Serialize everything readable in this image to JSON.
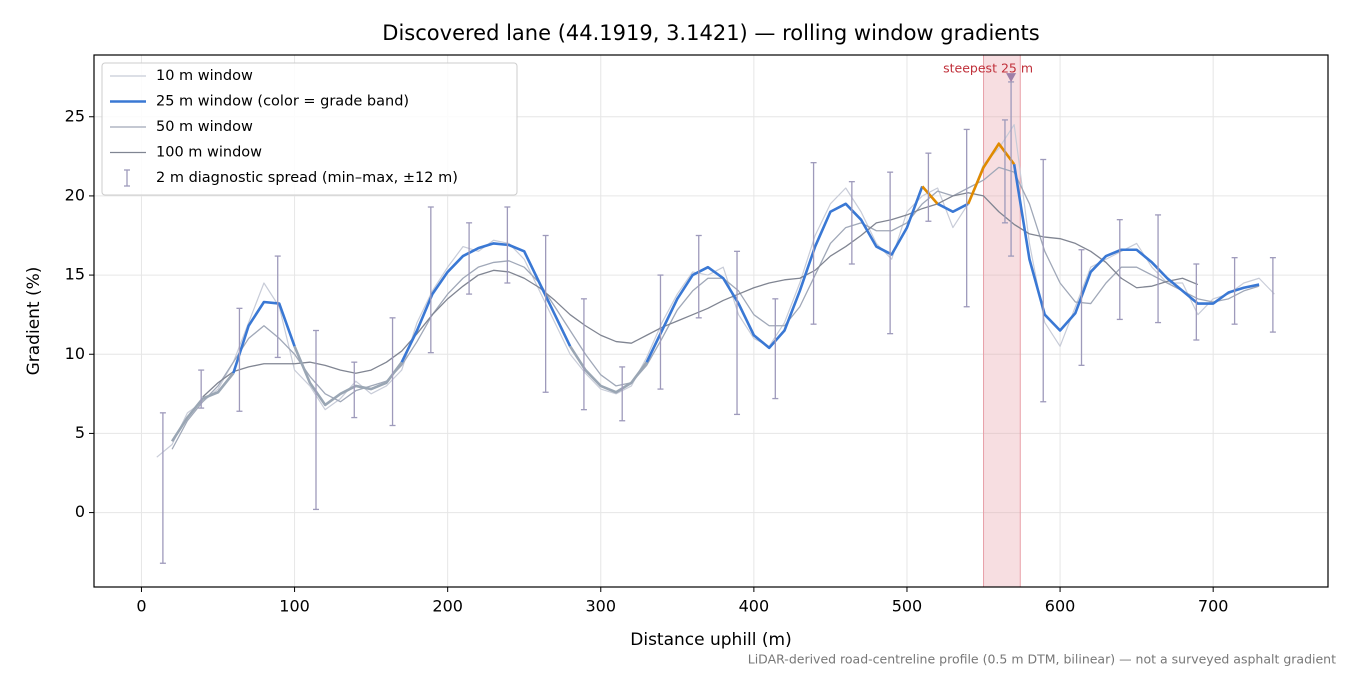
{
  "chart_data": {
    "type": "line",
    "title": "Discovered lane (44.1919, 3.1421) — rolling window gradients",
    "x_label": "Distance uphill (m)",
    "y_label": "Gradient (%)",
    "footnote": "LiDAR-derived road-centreline profile (0.5 m DTM, bilinear) — not a surveyed asphalt gradient",
    "xlim": [
      -31,
      775
    ],
    "ylim": [
      -4.7,
      28.9
    ],
    "xticks": [
      0,
      100,
      200,
      300,
      400,
      500,
      600,
      700
    ],
    "yticks": [
      0,
      5,
      10,
      15,
      20,
      25
    ],
    "grid": true,
    "legend": "upper left",
    "x": [
      10,
      20,
      30,
      40,
      50,
      60,
      70,
      80,
      90,
      100,
      110,
      120,
      130,
      140,
      150,
      160,
      170,
      180,
      190,
      200,
      210,
      220,
      230,
      240,
      250,
      260,
      270,
      280,
      290,
      300,
      310,
      320,
      330,
      340,
      350,
      360,
      370,
      380,
      390,
      400,
      410,
      420,
      430,
      440,
      450,
      460,
      470,
      480,
      490,
      500,
      510,
      520,
      530,
      540,
      550,
      560,
      570,
      580,
      590,
      600,
      610,
      620,
      630,
      640,
      650,
      660,
      670,
      680,
      690,
      700,
      710,
      720,
      730,
      740
    ],
    "series": [
      {
        "name": "10 m window",
        "color": "#c8ccd8",
        "width": 1.2,
        "values": [
          3.5,
          4.3,
          6.3,
          7.0,
          7.8,
          9.5,
          12.0,
          14.5,
          13.0,
          9.0,
          8.0,
          6.5,
          7.2,
          8.3,
          7.5,
          8.0,
          9.0,
          12.0,
          14.0,
          15.5,
          16.8,
          16.5,
          17.2,
          17.0,
          16.0,
          14.0,
          12.0,
          10.0,
          8.8,
          7.8,
          7.5,
          8.0,
          9.8,
          12.0,
          13.8,
          15.2,
          15.0,
          15.5,
          12.5,
          11.0,
          10.5,
          12.0,
          14.5,
          17.5,
          19.5,
          20.5,
          19.0,
          17.0,
          16.0,
          19.0,
          20.0,
          20.5,
          18.0,
          19.5,
          22.0,
          23.0,
          24.5,
          17.0,
          12.0,
          10.5,
          13.0,
          15.5,
          16.0,
          16.5,
          17.0,
          15.5,
          14.5,
          14.5,
          12.5,
          13.5,
          13.8,
          14.5,
          14.8,
          13.8
        ]
      },
      {
        "name": "25 m window (color = grade band)",
        "color": "#3a78d4",
        "width": 2.6,
        "band_limits": [
          10,
          20
        ],
        "band_colors": [
          "#9aa6b4",
          "#3a78d4",
          "#e08a00"
        ],
        "values": [
          null,
          4.5,
          6.0,
          7.2,
          7.6,
          8.8,
          11.8,
          13.3,
          13.2,
          10.5,
          8.2,
          6.8,
          7.5,
          8.0,
          7.8,
          8.2,
          9.5,
          11.5,
          13.8,
          15.2,
          16.2,
          16.7,
          17.0,
          16.9,
          16.5,
          14.5,
          12.5,
          10.5,
          9.0,
          8.0,
          7.6,
          8.2,
          9.5,
          11.5,
          13.5,
          15.0,
          15.5,
          14.8,
          13.2,
          11.2,
          10.4,
          11.5,
          14.0,
          16.8,
          19.0,
          19.5,
          18.5,
          16.8,
          16.3,
          18.0,
          20.6,
          19.5,
          19.0,
          19.5,
          21.8,
          23.3,
          22.0,
          16.0,
          12.5,
          11.5,
          12.6,
          15.2,
          16.2,
          16.6,
          16.6,
          15.8,
          14.8,
          14.0,
          13.2,
          13.2,
          13.9,
          14.2,
          14.4,
          null
        ]
      },
      {
        "name": "50 m window",
        "color": "#a0a8b8",
        "width": 1.3,
        "values": [
          null,
          4.0,
          5.8,
          7.0,
          8.0,
          9.5,
          11.0,
          11.8,
          11.0,
          10.0,
          8.6,
          7.5,
          7.0,
          7.7,
          8.0,
          8.3,
          9.3,
          10.8,
          12.5,
          13.8,
          14.8,
          15.5,
          15.8,
          15.9,
          15.5,
          14.5,
          13.0,
          11.5,
          10.0,
          8.7,
          8.0,
          8.2,
          9.3,
          11.0,
          12.8,
          14.0,
          14.8,
          14.8,
          14.0,
          12.5,
          11.8,
          11.8,
          13.0,
          15.0,
          17.0,
          18.0,
          18.3,
          17.8,
          17.8,
          18.3,
          19.5,
          20.3,
          20.0,
          20.5,
          21.0,
          21.8,
          21.5,
          19.5,
          16.5,
          14.5,
          13.3,
          13.2,
          14.5,
          15.5,
          15.5,
          15.0,
          14.5,
          14.0,
          13.5,
          13.3,
          13.5,
          14.0,
          14.3,
          null
        ]
      },
      {
        "name": "100 m window",
        "color": "#808592",
        "width": 1.3,
        "values": [
          null,
          null,
          null,
          7.3,
          8.2,
          8.9,
          9.2,
          9.4,
          9.4,
          9.4,
          9.5,
          9.3,
          9.0,
          8.8,
          9.0,
          9.5,
          10.2,
          11.3,
          12.5,
          13.5,
          14.3,
          15.0,
          15.3,
          15.2,
          14.8,
          14.2,
          13.4,
          12.5,
          11.8,
          11.2,
          10.8,
          10.7,
          11.2,
          11.7,
          12.1,
          12.5,
          12.9,
          13.4,
          13.8,
          14.2,
          14.5,
          14.7,
          14.8,
          15.3,
          16.2,
          16.8,
          17.5,
          18.3,
          18.5,
          18.8,
          19.2,
          19.5,
          20.0,
          20.2,
          20.0,
          19.0,
          18.2,
          17.6,
          17.4,
          17.3,
          17.0,
          16.5,
          15.8,
          14.8,
          14.2,
          14.3,
          14.6,
          14.8,
          14.4,
          null,
          null,
          null,
          null,
          null
        ]
      }
    ],
    "errorbars": {
      "name": "2 m diagnostic spread (min–max, ±12 m)",
      "color": "#9e9abb",
      "x": [
        14,
        39,
        64,
        89,
        114,
        139,
        164,
        189,
        214,
        239,
        264,
        289,
        314,
        339,
        364,
        389,
        414,
        439,
        464,
        489,
        514,
        539,
        564,
        568,
        589,
        614,
        639,
        664,
        689,
        714,
        739
      ],
      "low": [
        -3.2,
        6.6,
        6.4,
        9.8,
        0.2,
        6.0,
        5.5,
        10.1,
        13.8,
        14.5,
        7.6,
        6.5,
        5.8,
        7.8,
        12.3,
        6.2,
        7.2,
        11.9,
        15.7,
        11.3,
        18.4,
        13.0,
        18.3,
        16.2,
        7.0,
        9.3,
        12.2,
        12.0,
        10.9,
        11.9,
        11.4
      ],
      "high": [
        6.3,
        9.0,
        12.9,
        16.2,
        11.5,
        9.5,
        12.3,
        19.3,
        18.3,
        19.3,
        17.5,
        13.5,
        9.2,
        15.0,
        17.5,
        16.5,
        13.5,
        22.1,
        20.9,
        21.5,
        22.7,
        24.2,
        24.8,
        27.2,
        22.3,
        16.6,
        18.5,
        18.8,
        15.7,
        16.1,
        16.1
      ]
    },
    "highlight": {
      "label": "steepest 25 m",
      "span": [
        550,
        574
      ],
      "color": "#e8a0a8",
      "marker_x": 568,
      "marker_y": 27.5,
      "marker_color": "#9e7fa8",
      "label_color": "#c0303a"
    }
  }
}
